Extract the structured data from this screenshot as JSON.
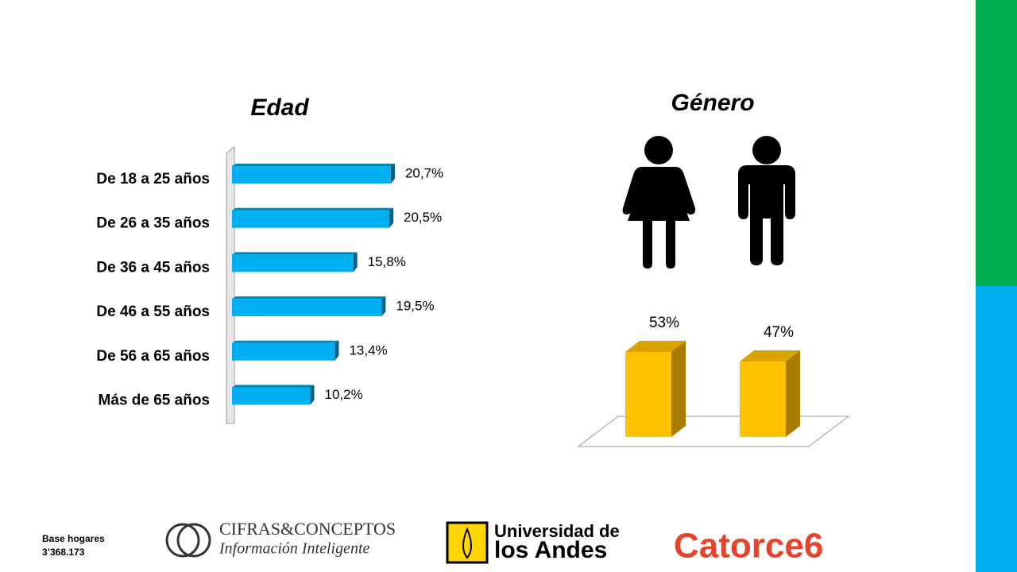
{
  "chart_data": [
    {
      "type": "bar",
      "orientation": "horizontal",
      "title": "Edad",
      "categories": [
        "De 18 a 25 años",
        "De 26 a 35 años",
        "De 36 a 45 años",
        "De 46 a 55 años",
        "De 56 a 65 años",
        "Más de 65 años"
      ],
      "values": [
        20.7,
        20.5,
        15.8,
        19.5,
        13.4,
        10.2
      ],
      "value_labels": [
        "20,7%",
        "20,5%",
        "15,8%",
        "19,5%",
        "13,4%",
        "10,2%"
      ],
      "color": "#00b0f0"
    },
    {
      "type": "bar",
      "orientation": "vertical",
      "title": "Género",
      "categories": [
        null,
        null
      ],
      "values": [
        53,
        47
      ],
      "value_labels": [
        "53%",
        "47%"
      ],
      "color": "#ffc000"
    }
  ],
  "footer": {
    "base": "Base hogares",
    "count": "3’368.173"
  },
  "logos": {
    "cifras": "CIFRAS&CONCEPTOS",
    "cifras_tagline": "Información Inteligente",
    "andes_1": "Universidad de",
    "andes_2": "los Andes",
    "catorce": "Catorce6"
  }
}
